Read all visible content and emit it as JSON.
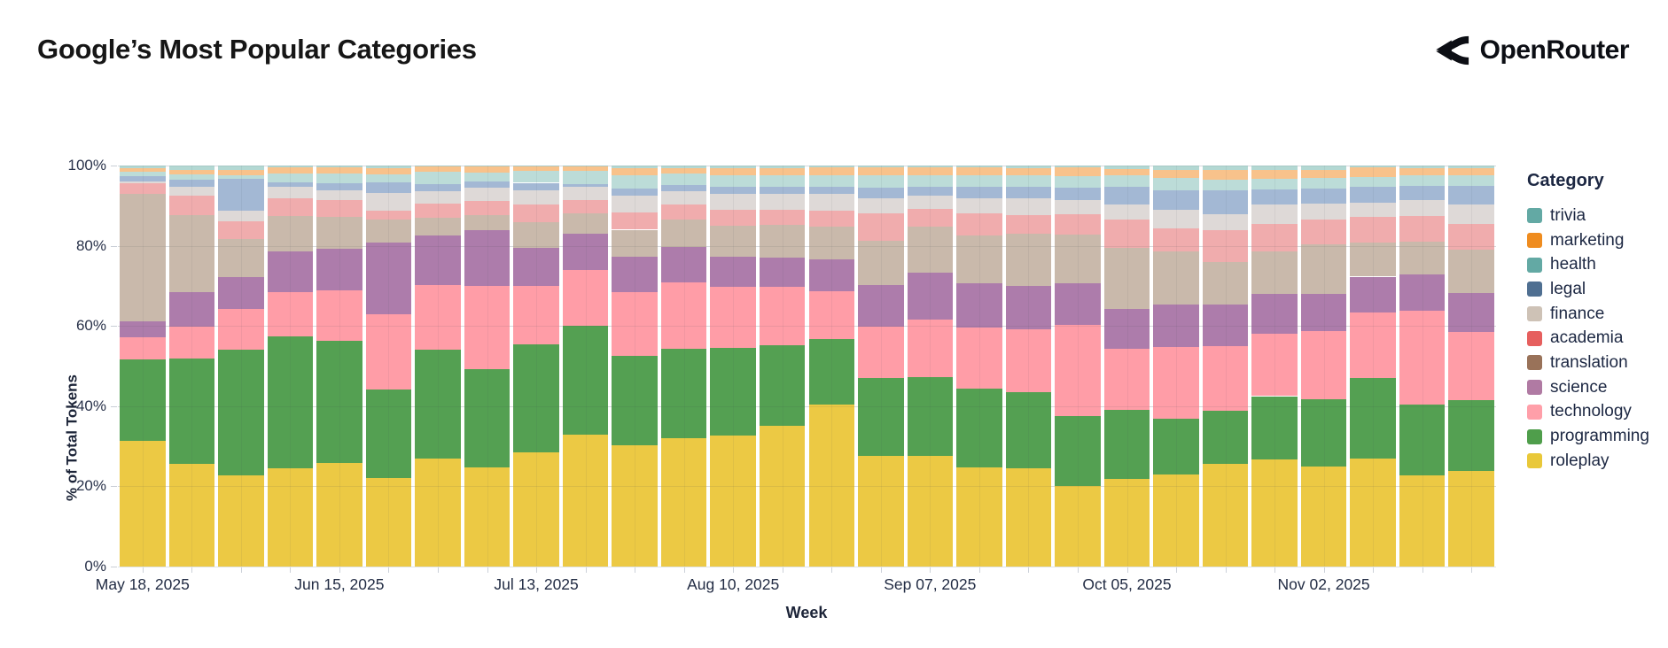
{
  "header": {
    "title": "Google’s Most Popular Categories",
    "brand_name": "OpenRouter"
  },
  "chart_data": {
    "type": "bar",
    "subtype": "stacked-percent",
    "title": "Google’s Most Popular Categories",
    "xlabel": "Week",
    "ylabel": "% of Total Tokens",
    "ylim": [
      0,
      100
    ],
    "yticks": [
      "0%",
      "20%",
      "40%",
      "60%",
      "80%",
      "100%"
    ],
    "ytick_values": [
      0,
      20,
      40,
      60,
      80,
      100
    ],
    "legend_position": "right",
    "legend_title": "Category",
    "grid": true,
    "categories": [
      "May 18, 2025",
      "May 25, 2025",
      "Jun 01, 2025",
      "Jun 08, 2025",
      "Jun 15, 2025",
      "Jun 22, 2025",
      "Jun 29, 2025",
      "Jul 06, 2025",
      "Jul 13, 2025",
      "Jul 20, 2025",
      "Jul 27, 2025",
      "Aug 03, 2025",
      "Aug 10, 2025",
      "Aug 17, 2025",
      "Aug 24, 2025",
      "Aug 31, 2025",
      "Sep 07, 2025",
      "Sep 14, 2025",
      "Sep 21, 2025",
      "Sep 28, 2025",
      "Oct 05, 2025",
      "Oct 12, 2025",
      "Oct 19, 2025",
      "Oct 26, 2025",
      "Nov 02, 2025",
      "Nov 09, 2025",
      "Nov 16, 2025",
      "Nov 23, 2025"
    ],
    "xtick_labels": [
      "May 18, 2025",
      "Jun 15, 2025",
      "Jul 13, 2025",
      "Aug 10, 2025",
      "Sep 07, 2025",
      "Oct 05, 2025",
      "Nov 02, 2025"
    ],
    "xtick_indices": [
      0,
      4,
      8,
      12,
      16,
      20,
      24
    ],
    "series": [
      {
        "name": "trivia",
        "legend_color": "#63a9a4",
        "bar_color": "#b3d8d3",
        "pattern": true,
        "values": [
          0.6,
          1.0,
          1.2,
          0.5,
          0.4,
          0.7,
          0.3,
          0.3,
          0.2,
          0.3,
          0.6,
          0.7,
          0.7,
          0.6,
          0.5,
          0.5,
          0.5,
          0.4,
          0.7,
          0.5,
          0.8,
          1.0,
          1.1,
          1.0,
          1.1,
          0.5,
          0.6,
          0.6
        ]
      },
      {
        "name": "marketing",
        "legend_color": "#ef8c1f",
        "bar_color": "#f8c28b",
        "pattern": true,
        "values": [
          1.0,
          1.3,
          1.2,
          1.4,
          1.5,
          1.5,
          1.3,
          1.5,
          1.1,
          1.0,
          1.8,
          1.2,
          1.8,
          1.8,
          2.0,
          2.0,
          2.0,
          2.0,
          1.8,
          2.1,
          1.6,
          2.1,
          2.4,
          2.2,
          2.0,
          2.4,
          1.8,
          1.8
        ]
      },
      {
        "name": "health",
        "legend_color": "#63a9a4",
        "bar_color": "#bcdcd8",
        "pattern": true,
        "values": [
          1.0,
          1.3,
          0.8,
          2.2,
          2.5,
          2.0,
          3.0,
          2.2,
          3.0,
          3.3,
          3.3,
          3.0,
          2.7,
          2.8,
          2.7,
          3.0,
          2.7,
          3.0,
          2.7,
          3.0,
          2.8,
          3.0,
          2.7,
          2.8,
          2.7,
          2.4,
          2.6,
          2.7
        ]
      },
      {
        "name": "legal",
        "legend_color": "#4f6f91",
        "bar_color": "#a3b8d4",
        "pattern": true,
        "values": [
          1.3,
          1.6,
          8.1,
          1.2,
          1.8,
          2.6,
          1.8,
          1.5,
          1.8,
          0.7,
          1.8,
          1.6,
          1.8,
          1.8,
          1.9,
          2.7,
          2.4,
          2.7,
          3.0,
          3.1,
          4.4,
          5.0,
          5.9,
          3.8,
          3.7,
          3.9,
          3.7,
          4.7
        ]
      },
      {
        "name": "finance",
        "legend_color": "#cec2b6",
        "bar_color": "#ded9d7",
        "pattern": true,
        "values": [
          0.5,
          2.4,
          2.6,
          2.8,
          2.4,
          4.4,
          3.0,
          3.3,
          3.7,
          3.3,
          4.1,
          3.3,
          4.1,
          4.1,
          4.2,
          3.8,
          3.3,
          3.9,
          4.1,
          3.5,
          3.8,
          4.6,
          4.1,
          4.7,
          4.0,
          3.7,
          3.8,
          4.7
        ]
      },
      {
        "name": "academia",
        "legend_color": "#e65f5e",
        "bar_color": "#f0acad",
        "pattern": true,
        "values": [
          2.6,
          4.8,
          4.4,
          4.5,
          4.1,
          2.2,
          3.7,
          3.5,
          4.4,
          3.3,
          4.4,
          3.7,
          4.0,
          3.7,
          3.9,
          6.7,
          4.3,
          5.4,
          4.7,
          5.0,
          7.2,
          5.8,
          7.8,
          6.8,
          6.1,
          6.3,
          6.4,
          6.4
        ]
      },
      {
        "name": "translation",
        "legend_color": "#997259",
        "bar_color": "#c9b9ab",
        "pattern": true,
        "values": [
          31.8,
          19.2,
          9.6,
          8.8,
          8.0,
          5.9,
          4.4,
          3.8,
          6.3,
          5.2,
          6.7,
          6.7,
          7.6,
          8.1,
          8.3,
          11.2,
          11.4,
          12.0,
          13.1,
          12.2,
          15.2,
          13.1,
          10.6,
          10.7,
          12.3,
          8.5,
          8.3,
          10.9
        ]
      },
      {
        "name": "science",
        "legend_color": "#b07aa3",
        "bar_color": "#ad7cab",
        "pattern": false,
        "values": [
          4.1,
          8.5,
          7.8,
          10.2,
          10.5,
          17.7,
          12.2,
          14.0,
          9.6,
          9.0,
          8.9,
          9.0,
          7.6,
          7.4,
          7.8,
          10.2,
          11.7,
          10.9,
          10.8,
          10.3,
          10.0,
          10.6,
          10.5,
          10.0,
          9.3,
          8.9,
          9.0,
          9.6
        ]
      },
      {
        "name": "technology",
        "legend_color": "#ff9fa9",
        "bar_color": "#ff9da7",
        "pattern": false,
        "values": [
          5.5,
          8.1,
          10.3,
          10.9,
          12.6,
          18.8,
          16.3,
          20.7,
          14.4,
          13.9,
          15.9,
          16.4,
          15.1,
          14.6,
          12.0,
          12.9,
          14.4,
          15.3,
          15.5,
          22.8,
          15.2,
          17.9,
          16.1,
          15.5,
          17.0,
          16.3,
          23.5,
          17.0
        ]
      },
      {
        "name": "programming",
        "legend_color": "#4f9e4b",
        "bar_color": "#54a052",
        "pattern": false,
        "values": [
          20.3,
          26.2,
          31.3,
          33.1,
          30.3,
          22.2,
          27.0,
          24.4,
          27.0,
          27.0,
          22.2,
          22.4,
          22.0,
          20.0,
          16.4,
          19.4,
          19.6,
          19.6,
          19.2,
          17.5,
          17.2,
          13.9,
          13.1,
          15.7,
          16.8,
          20.2,
          17.6,
          17.7
        ]
      },
      {
        "name": "roleplay",
        "legend_color": "#e9c839",
        "bar_color": "#ecc944",
        "pattern": false,
        "values": [
          31.3,
          25.6,
          22.7,
          24.4,
          25.9,
          22.0,
          27.0,
          24.8,
          28.5,
          33.0,
          30.3,
          32.0,
          32.6,
          35.1,
          40.3,
          27.6,
          27.7,
          24.8,
          24.4,
          20.0,
          21.8,
          23.0,
          25.7,
          26.8,
          25.0,
          26.9,
          22.7,
          23.9
        ]
      }
    ]
  }
}
